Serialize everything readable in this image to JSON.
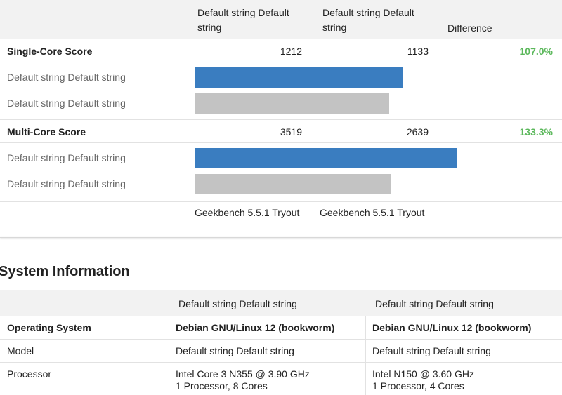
{
  "comparison": {
    "headers": [
      "Default string Default string",
      "Default string Default string",
      "Difference"
    ],
    "sections": [
      {
        "label": "Single-Core Score",
        "scores": [
          1212,
          1133
        ],
        "difference": "107.0%",
        "bars": [
          {
            "label": "Default string Default string",
            "color": "#3a7dc0"
          },
          {
            "label": "Default string Default string",
            "color": "#c3c3c3"
          }
        ]
      },
      {
        "label": "Multi-Core Score",
        "scores": [
          3519,
          2639
        ],
        "difference": "133.3%",
        "bars": [
          {
            "label": "Default string Default string",
            "color": "#3a7dc0"
          },
          {
            "label": "Default string Default string",
            "color": "#c3c3c3"
          }
        ]
      }
    ],
    "footer": [
      "Geekbench 5.5.1 Tryout",
      "Geekbench 5.5.1 Tryout"
    ]
  },
  "system_information": {
    "title": "System Information",
    "headers": [
      "Default string Default string",
      "Default string Default string"
    ],
    "rows": [
      {
        "label": "Operating System",
        "cells": [
          [
            "Debian GNU/Linux 12 (bookworm)"
          ],
          [
            "Debian GNU/Linux 12 (bookworm)"
          ]
        ]
      },
      {
        "label": "Model",
        "cells": [
          [
            "Default string Default string"
          ],
          [
            "Default string Default string"
          ]
        ]
      },
      {
        "label": "Processor",
        "cells": [
          [
            "Intel Core 3 N355 @ 3.90 GHz",
            "1 Processor, 8 Cores"
          ],
          [
            "Intel N150 @ 3.60 GHz",
            "1 Processor, 4 Cores"
          ]
        ]
      }
    ]
  }
}
